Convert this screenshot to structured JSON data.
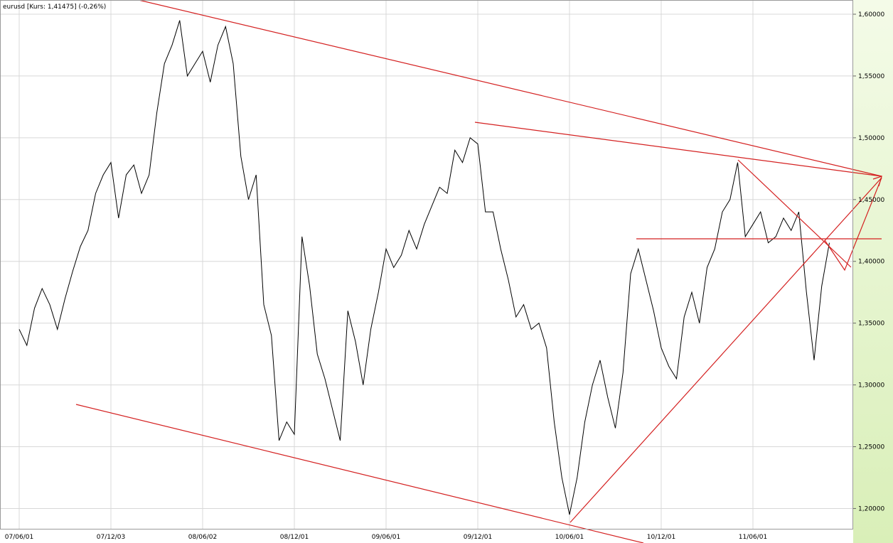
{
  "chart_data": {
    "type": "line",
    "title": "eurusd [Kurs: 1,41475] (-0,26%)",
    "categories": [
      "07/06/01",
      null,
      null,
      null,
      null,
      null,
      null,
      null,
      null,
      null,
      null,
      null,
      "07/12/03",
      null,
      null,
      null,
      null,
      null,
      null,
      null,
      null,
      null,
      null,
      null,
      "08/06/02",
      null,
      null,
      null,
      null,
      null,
      null,
      null,
      null,
      null,
      null,
      null,
      "08/12/01",
      null,
      null,
      null,
      null,
      null,
      null,
      null,
      null,
      null,
      null,
      null,
      "09/06/01",
      null,
      null,
      null,
      null,
      null,
      null,
      null,
      null,
      null,
      null,
      null,
      "09/12/01",
      null,
      null,
      null,
      null,
      null,
      null,
      null,
      null,
      null,
      null,
      null,
      "10/06/01",
      null,
      null,
      null,
      null,
      null,
      null,
      null,
      null,
      null,
      null,
      null,
      "10/12/01",
      null,
      null,
      null,
      null,
      null,
      null,
      null,
      null,
      null,
      null,
      null,
      "11/06/01",
      null,
      null,
      null,
      null,
      null,
      null,
      null,
      null,
      null,
      null
    ],
    "values": [
      1.345,
      1.332,
      1.362,
      1.378,
      1.365,
      1.345,
      1.37,
      1.392,
      1.412,
      1.425,
      1.455,
      1.47,
      1.48,
      1.435,
      1.47,
      1.478,
      1.455,
      1.47,
      1.52,
      1.56,
      1.575,
      1.595,
      1.55,
      1.56,
      1.57,
      1.545,
      1.575,
      1.59,
      1.56,
      1.485,
      1.45,
      1.47,
      1.365,
      1.34,
      1.255,
      1.27,
      1.26,
      1.42,
      1.38,
      1.325,
      1.305,
      1.28,
      1.255,
      1.36,
      1.335,
      1.3,
      1.345,
      1.375,
      1.41,
      1.395,
      1.405,
      1.425,
      1.41,
      1.43,
      1.445,
      1.46,
      1.455,
      1.49,
      1.48,
      1.5,
      1.495,
      1.44,
      1.44,
      1.41,
      1.385,
      1.355,
      1.365,
      1.345,
      1.35,
      1.33,
      1.27,
      1.225,
      1.195,
      1.225,
      1.27,
      1.3,
      1.32,
      1.29,
      1.265,
      1.31,
      1.39,
      1.41,
      1.385,
      1.36,
      1.33,
      1.315,
      1.305,
      1.355,
      1.375,
      1.35,
      1.395,
      1.41,
      1.44,
      1.45,
      1.48,
      1.42,
      1.43,
      1.44,
      1.415,
      1.42,
      1.435,
      1.425,
      1.44,
      1.375,
      1.32,
      1.38,
      1.415
    ],
    "color": "#000000",
    "ylim": [
      1.183,
      1.6115
    ],
    "yticks": [
      {
        "value": 1.2,
        "label": "1,20000"
      },
      {
        "value": 1.25,
        "label": "1,25000"
      },
      {
        "value": 1.3,
        "label": "1,30000"
      },
      {
        "value": 1.35,
        "label": "1,35000"
      },
      {
        "value": 1.4,
        "label": "1,40000"
      },
      {
        "value": 1.45,
        "label": "1,45000"
      },
      {
        "value": 1.5,
        "label": "1,50000"
      },
      {
        "value": 1.55,
        "label": "1,55000"
      },
      {
        "value": 1.6,
        "label": "1,60000"
      }
    ],
    "grid": true
  }
}
